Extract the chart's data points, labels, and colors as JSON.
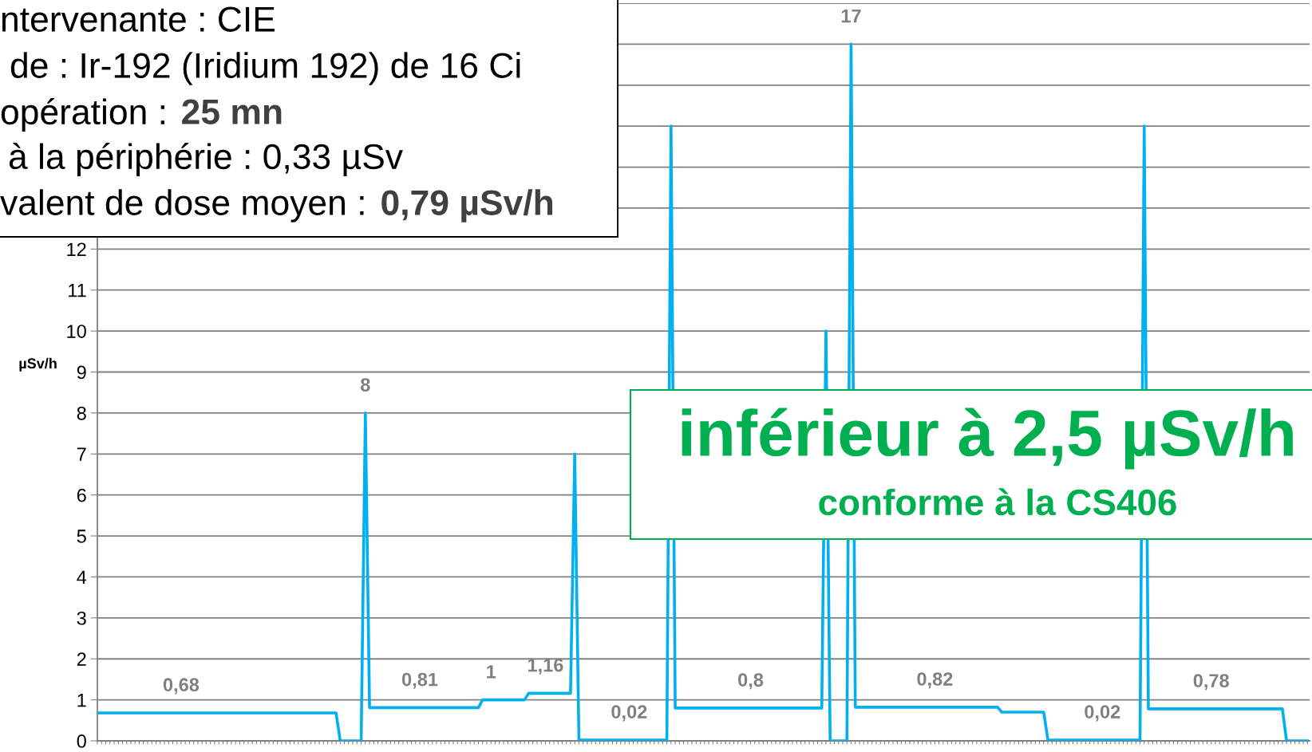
{
  "chart_data": {
    "type": "line",
    "ylabel": "µSv/h",
    "color": "#00b0f0",
    "line_style": "solid",
    "grid": "y",
    "ylim": [
      0,
      18
    ],
    "yticks": [
      0,
      1,
      2,
      3,
      4,
      5,
      6,
      7,
      8,
      9,
      10,
      11,
      12,
      {
        "value": 13,
        "label": null
      },
      {
        "value": 14,
        "label": null
      },
      {
        "value": 15,
        "label": null
      },
      {
        "value": 16,
        "label": null
      },
      {
        "value": 17,
        "label": null
      },
      {
        "value": 18,
        "label": null
      }
    ],
    "annotations": [
      "ntervenante : CIE",
      "de : Ir-192 (Iridium 192) de 16 Ci",
      "opération : ",
      "25 mn",
      "à la périphérie : 0,33 µSv",
      "valent de dose moyen : ",
      "0,79 µSv/h",
      "inférieur à 2,5 µSv/h",
      "conforme à la CS406"
    ],
    "categories": [
      null,
      null,
      null,
      null,
      null,
      null,
      null,
      null,
      null,
      null,
      null,
      null,
      null,
      null,
      null,
      null,
      null,
      null,
      null,
      null,
      null,
      null,
      null,
      null,
      null,
      null,
      null,
      null,
      null,
      null,
      null,
      null,
      null,
      null,
      null,
      null,
      null,
      null,
      null,
      null,
      null,
      null,
      null,
      null,
      null,
      null,
      null,
      null,
      null,
      null,
      null,
      null,
      null,
      null,
      null,
      null,
      null,
      null,
      null,
      null,
      null,
      null,
      null,
      null,
      null,
      null,
      null,
      null,
      null,
      null,
      null,
      null,
      null,
      null,
      null,
      null,
      null,
      null,
      null,
      null,
      null,
      null,
      null,
      null,
      null,
      null,
      null,
      null,
      null,
      null,
      null,
      null,
      null,
      null,
      null,
      null,
      null,
      null,
      null,
      null,
      null,
      null,
      null,
      null,
      null,
      null,
      null,
      null,
      null,
      null,
      null,
      null,
      null,
      null,
      null,
      null,
      null,
      null,
      null,
      null,
      null,
      null,
      null,
      null,
      null,
      null,
      null,
      null,
      null,
      null,
      null,
      null,
      null,
      null,
      null,
      null,
      null,
      null,
      null,
      null,
      null,
      null,
      null,
      null,
      null,
      null,
      null,
      null,
      null,
      null,
      null,
      null,
      null,
      null,
      null,
      null,
      null,
      null,
      null,
      null,
      null,
      null,
      null,
      null,
      null,
      null,
      null,
      null,
      null,
      null,
      null,
      null,
      null,
      null,
      null,
      null,
      null,
      null,
      null,
      null,
      null,
      null,
      null,
      null,
      null,
      null,
      null,
      null,
      null,
      null,
      null,
      null,
      null,
      null,
      null,
      null,
      null,
      null,
      null,
      null,
      null,
      null,
      null,
      null,
      null,
      null,
      null,
      null,
      null,
      null,
      null,
      null,
      null,
      null,
      null,
      null,
      null,
      null,
      null,
      null,
      null,
      null,
      null,
      null,
      null,
      null,
      null,
      null,
      null,
      null,
      null,
      null,
      null,
      null,
      null,
      null,
      null,
      null,
      null,
      null,
      null,
      null,
      null,
      null,
      null,
      null,
      null,
      null,
      null,
      null,
      null,
      null,
      null,
      null,
      null,
      null,
      null,
      null,
      null,
      null,
      null,
      null,
      null,
      null,
      null,
      null,
      null,
      null,
      null,
      null,
      null,
      null,
      null,
      null,
      null,
      null,
      null,
      null,
      null,
      null,
      null,
      null,
      null,
      null,
      null,
      null,
      null,
      null,
      null,
      null
    ],
    "values": [
      0.68,
      0.68,
      0.68,
      0.68,
      0.68,
      0.68,
      0.68,
      0.68,
      0.68,
      0.68,
      0.68,
      0.68,
      0.68,
      0.68,
      0.68,
      0.68,
      0.68,
      0.68,
      0.68,
      0.68,
      0.68,
      0.68,
      0.68,
      0.68,
      0.68,
      0.68,
      0.68,
      0.68,
      0.68,
      0.68,
      0.68,
      0.68,
      0.68,
      0.68,
      0.68,
      0.68,
      0.68,
      0.68,
      0.68,
      0.68,
      0.68,
      0.68,
      0.68,
      0.68,
      0.68,
      0.68,
      0.68,
      0.68,
      0.68,
      0.68,
      0.68,
      0.68,
      0.68,
      0.68,
      0.68,
      0.68,
      0.68,
      0.68,
      0,
      0,
      0,
      0,
      0,
      0,
      8,
      0.81,
      0.81,
      0.81,
      0.81,
      0.81,
      0.81,
      0.81,
      0.81,
      0.81,
      0.81,
      0.81,
      0.81,
      0.81,
      0.81,
      0.81,
      0.81,
      0.81,
      0.81,
      0.81,
      0.81,
      0.81,
      0.81,
      0.81,
      0.81,
      0.81,
      0.81,
      0.81,
      1,
      1,
      1,
      1,
      1,
      1,
      1,
      1,
      1,
      1,
      1,
      1.16,
      1.16,
      1.16,
      1.16,
      1.16,
      1.16,
      1.16,
      1.16,
      1.16,
      1.16,
      1.16,
      7,
      0.02,
      0.02,
      0.02,
      0.02,
      0.02,
      0.02,
      0.02,
      0.02,
      0.02,
      0.02,
      0.02,
      0.02,
      0.02,
      0.02,
      0.02,
      0.02,
      0.02,
      0.02,
      0.02,
      0.02,
      0.02,
      0.02,
      15,
      0.8,
      0.8,
      0.8,
      0.8,
      0.8,
      0.8,
      0.8,
      0.8,
      0.8,
      0.8,
      0.8,
      0.8,
      0.8,
      0.8,
      0.8,
      0.8,
      0.8,
      0.8,
      0.8,
      0.8,
      0.8,
      0.8,
      0.8,
      0.8,
      0.8,
      0.8,
      0.8,
      0.8,
      0.8,
      0.8,
      0.8,
      0.8,
      0.8,
      0.8,
      0.8,
      0.8,
      10,
      0,
      0,
      0,
      0,
      0,
      17,
      0.82,
      0.82,
      0.82,
      0.82,
      0.82,
      0.82,
      0.82,
      0.82,
      0.82,
      0.82,
      0.82,
      0.82,
      0.82,
      0.82,
      0.82,
      0.82,
      0.82,
      0.82,
      0.82,
      0.82,
      0.82,
      0.82,
      0.82,
      0.82,
      0.82,
      0.82,
      0.82,
      0.82,
      0.82,
      0.82,
      0.82,
      0.82,
      0.82,
      0.82,
      0.82,
      0.7,
      0.7,
      0.7,
      0.7,
      0.7,
      0.7,
      0.7,
      0.7,
      0.7,
      0.7,
      0.7,
      0.02,
      0.02,
      0.02,
      0.02,
      0.02,
      0.02,
      0.02,
      0.02,
      0.02,
      0.02,
      0.02,
      0.02,
      0.02,
      0.02,
      0.02,
      0.02,
      0.02,
      0.02,
      0.02,
      0.02,
      0.02,
      0.02,
      0.02,
      15,
      0.78,
      0.78,
      0.78,
      0.78,
      0.78,
      0.78,
      0.78,
      0.78,
      0.78,
      0.78,
      0.78,
      0.78,
      0.78,
      0.78,
      0.78,
      0.78,
      0.78,
      0.78,
      0.78,
      0.78,
      0.78,
      0.78,
      0.78,
      0.78,
      0.78,
      0.78,
      0.78,
      0.78,
      0.78,
      0.78,
      0.78,
      0.78,
      0.78,
      0,
      0,
      0,
      0,
      0,
      0
    ],
    "value_labels": [
      null,
      null,
      null,
      null,
      null,
      null,
      null,
      null,
      null,
      null,
      null,
      null,
      null,
      null,
      null,
      null,
      null,
      null,
      null,
      null,
      "0,68",
      null,
      null,
      null,
      null,
      null,
      null,
      null,
      null,
      null,
      null,
      null,
      null,
      null,
      null,
      null,
      null,
      null,
      null,
      null,
      null,
      null,
      null,
      null,
      null,
      null,
      null,
      null,
      null,
      null,
      null,
      null,
      null,
      null,
      null,
      null,
      null,
      null,
      null,
      null,
      null,
      null,
      null,
      null,
      "8",
      null,
      null,
      null,
      null,
      null,
      null,
      null,
      null,
      null,
      null,
      null,
      null,
      "0,81",
      null,
      null,
      null,
      null,
      null,
      null,
      null,
      null,
      null,
      null,
      null,
      null,
      null,
      null,
      null,
      null,
      "1",
      null,
      null,
      null,
      null,
      null,
      null,
      null,
      null,
      null,
      null,
      null,
      null,
      "1,16",
      null,
      null,
      null,
      null,
      null,
      null,
      null,
      null,
      null,
      null,
      null,
      null,
      null,
      null,
      null,
      null,
      null,
      null,
      null,
      "0,02",
      null,
      null,
      null,
      null,
      null,
      null,
      null,
      null,
      null,
      null,
      null,
      null,
      null,
      null,
      null,
      null,
      null,
      null,
      null,
      null,
      null,
      null,
      null,
      null,
      null,
      null,
      null,
      null,
      "0,8",
      null,
      null,
      null,
      null,
      null,
      null,
      null,
      null,
      null,
      null,
      null,
      null,
      null,
      null,
      null,
      null,
      null,
      null,
      null,
      null,
      null,
      null,
      null,
      "17",
      null,
      null,
      null,
      null,
      null,
      null,
      null,
      null,
      null,
      null,
      null,
      null,
      null,
      null,
      null,
      null,
      null,
      null,
      null,
      "0,82",
      null,
      null,
      null,
      null,
      null,
      null,
      null,
      null,
      null,
      null,
      null,
      null,
      null,
      null,
      null,
      null,
      null,
      null,
      null,
      null,
      null,
      null,
      null,
      null,
      null,
      null,
      null,
      null,
      null,
      null,
      null,
      null,
      null,
      null,
      null,
      null,
      null,
      null,
      null,
      "0,02",
      null,
      null,
      null,
      null,
      null,
      null,
      null,
      null,
      null,
      null,
      null,
      null,
      null,
      null,
      null,
      null,
      null,
      null,
      null,
      null,
      null,
      null,
      null,
      null,
      null,
      "0,78",
      null,
      null,
      null,
      null,
      null,
      null,
      null,
      null,
      null,
      null,
      null,
      null,
      null,
      null,
      null,
      null,
      null,
      null,
      null,
      null,
      null,
      null,
      null
    ]
  }
}
